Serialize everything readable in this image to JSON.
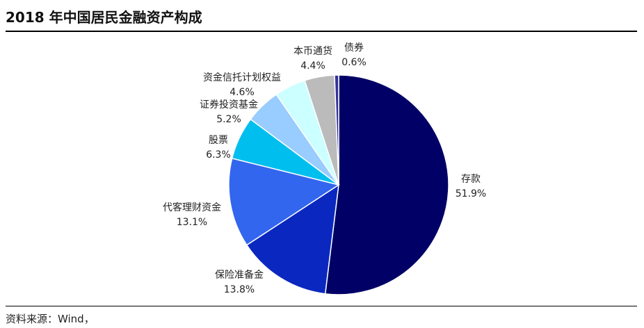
{
  "title": "2018 年中国居民金融资产构成",
  "source": "资料来源：Wind，",
  "chart_data": {
    "type": "pie",
    "title": "2018 年中国居民金融资产构成",
    "start": "12 o'clock, clockwise",
    "slices": [
      {
        "label": "存款",
        "value": 51.9,
        "value_label": "51.9%",
        "color": "#000066"
      },
      {
        "label": "保险准备金",
        "value": 13.8,
        "value_label": "13.8%",
        "color": "#0a28c0"
      },
      {
        "label": "代客理财资金",
        "value": 13.1,
        "value_label": "13.1%",
        "color": "#3366ee"
      },
      {
        "label": "股票",
        "value": 6.3,
        "value_label": "6.3%",
        "color": "#00bfee"
      },
      {
        "label": "证券投资基金",
        "value": 5.2,
        "value_label": "5.2%",
        "color": "#99ccff"
      },
      {
        "label": "资金信托计划权益",
        "value": 4.6,
        "value_label": "4.6%",
        "color": "#ccffff"
      },
      {
        "label": "本币通货",
        "value": 4.4,
        "value_label": "4.4%",
        "color": "#bbbbbb"
      },
      {
        "label": "债券",
        "value": 0.6,
        "value_label": "0.6%",
        "color": "#333399"
      }
    ]
  }
}
